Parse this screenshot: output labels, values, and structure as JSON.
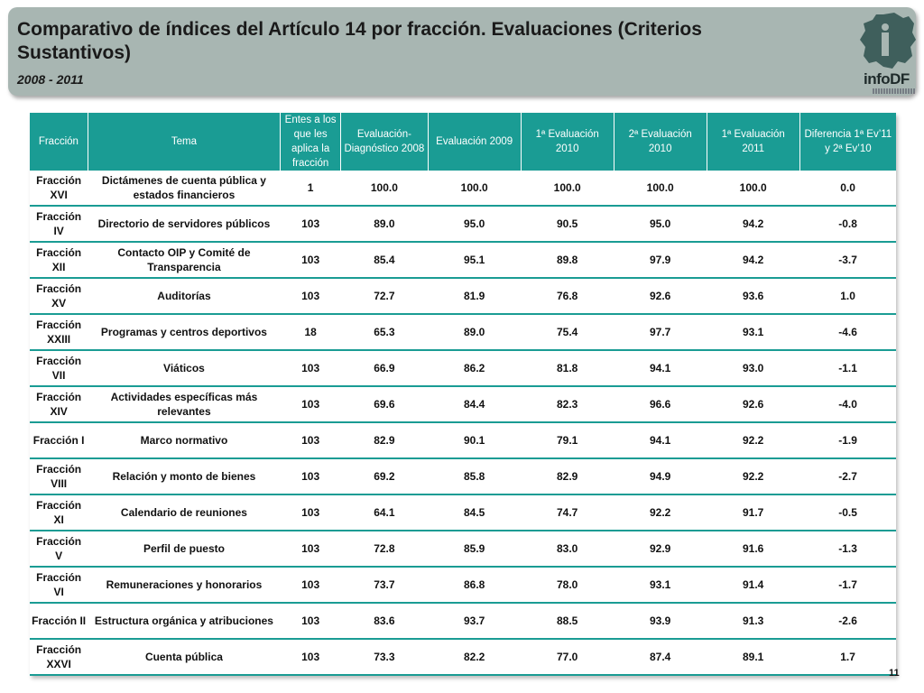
{
  "header": {
    "title": "Comparativo de índices del Artículo 14 por fracción. Evaluaciones (Criterios Sustantivos)",
    "subtitle": "2008 - 2011",
    "logo_text": "infoDF"
  },
  "table": {
    "columns": [
      "Fracción",
      "Tema",
      "Entes a los que les aplica la fracción",
      "Evaluación-Diagnóstico 2008",
      "Evaluación 2009",
      "1ª Evaluación 2010",
      "2ª Evaluación 2010",
      "1ª Evaluación 2011",
      "Diferencia 1ª Ev’11 y 2ª Ev’10"
    ],
    "rows": [
      [
        "Fracción XVI",
        "Dictámenes de cuenta pública y estados financieros",
        "1",
        "100.0",
        "100.0",
        "100.0",
        "100.0",
        "100.0",
        "0.0"
      ],
      [
        "Fracción IV",
        "Directorio de servidores públicos",
        "103",
        "89.0",
        "95.0",
        "90.5",
        "95.0",
        "94.2",
        "-0.8"
      ],
      [
        "Fracción XII",
        "Contacto OIP y Comité de Transparencia",
        "103",
        "85.4",
        "95.1",
        "89.8",
        "97.9",
        "94.2",
        "-3.7"
      ],
      [
        "Fracción XV",
        "Auditorías",
        "103",
        "72.7",
        "81.9",
        "76.8",
        "92.6",
        "93.6",
        "1.0"
      ],
      [
        "Fracción XXIII",
        "Programas y centros deportivos",
        "18",
        "65.3",
        "89.0",
        "75.4",
        "97.7",
        "93.1",
        "-4.6"
      ],
      [
        "Fracción VII",
        "Viáticos",
        "103",
        "66.9",
        "86.2",
        "81.8",
        "94.1",
        "93.0",
        "-1.1"
      ],
      [
        "Fracción XIV",
        "Actividades específicas más relevantes",
        "103",
        "69.6",
        "84.4",
        "82.3",
        "96.6",
        "92.6",
        "-4.0"
      ],
      [
        "Fracción I",
        "Marco normativo",
        "103",
        "82.9",
        "90.1",
        "79.1",
        "94.1",
        "92.2",
        "-1.9"
      ],
      [
        "Fracción VIII",
        "Relación y monto de bienes",
        "103",
        "69.2",
        "85.8",
        "82.9",
        "94.9",
        "92.2",
        "-2.7"
      ],
      [
        "Fracción XI",
        "Calendario de reuniones",
        "103",
        "64.1",
        "84.5",
        "74.7",
        "92.2",
        "91.7",
        "-0.5"
      ],
      [
        "Fracción V",
        "Perfil de puesto",
        "103",
        "72.8",
        "85.9",
        "83.0",
        "92.9",
        "91.6",
        "-1.3"
      ],
      [
        "Fracción VI",
        "Remuneraciones y honorarios",
        "103",
        "73.7",
        "86.8",
        "78.0",
        "93.1",
        "91.4",
        "-1.7"
      ],
      [
        "Fracción II",
        "Estructura orgánica y atribuciones",
        "103",
        "83.6",
        "93.7",
        "88.5",
        "93.9",
        "91.3",
        "-2.6"
      ],
      [
        "Fracción XXVI",
        "Cuenta pública",
        "103",
        "73.3",
        "82.2",
        "77.0",
        "87.4",
        "89.1",
        "1.7"
      ]
    ]
  },
  "footer": {
    "page_number": "11"
  },
  "colors": {
    "header_bg": "#a8b6b2",
    "table_header": "#1a9c94"
  }
}
